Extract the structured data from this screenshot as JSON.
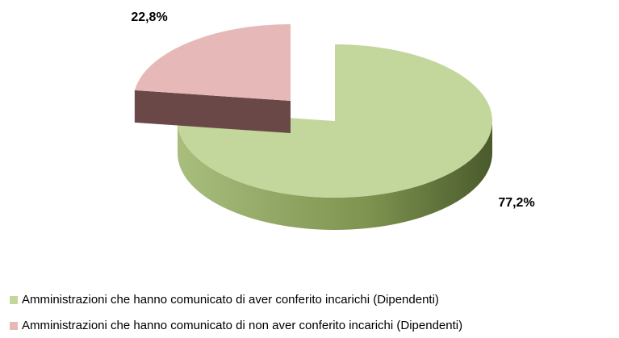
{
  "chart_data": {
    "type": "pie",
    "categories": [
      "Amministrazioni che hanno comunicato di aver conferito incarichi (Dipendenti)",
      "Amministrazioni che hanno comunicato di non aver conferito incarichi (Dipendenti)"
    ],
    "values": [
      77.2,
      22.8
    ],
    "value_labels": [
      "77,2%",
      "22,8%"
    ],
    "colors": [
      "#c3d69b",
      "#e6b9b8"
    ],
    "legend": "bottom"
  }
}
